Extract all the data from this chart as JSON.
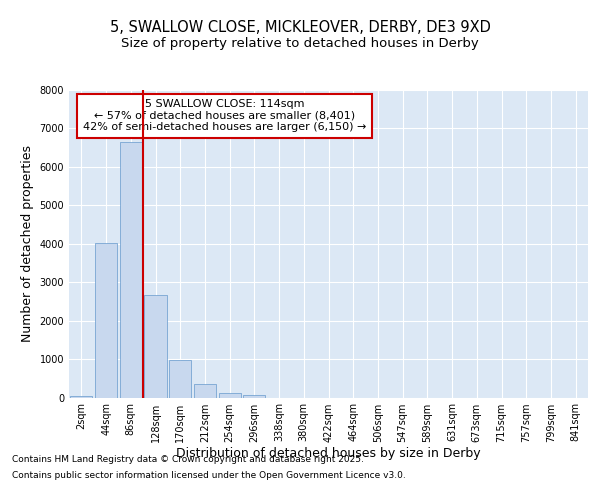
{
  "title_line1": "5, SWALLOW CLOSE, MICKLEOVER, DERBY, DE3 9XD",
  "title_line2": "Size of property relative to detached houses in Derby",
  "xlabel": "Distribution of detached houses by size in Derby",
  "ylabel": "Number of detached properties",
  "categories": [
    "2sqm",
    "44sqm",
    "86sqm",
    "128sqm",
    "170sqm",
    "212sqm",
    "254sqm",
    "296sqm",
    "338sqm",
    "380sqm",
    "422sqm",
    "464sqm",
    "506sqm",
    "547sqm",
    "589sqm",
    "631sqm",
    "673sqm",
    "715sqm",
    "757sqm",
    "799sqm",
    "841sqm"
  ],
  "values": [
    50,
    4030,
    6640,
    2660,
    970,
    340,
    110,
    60,
    0,
    0,
    0,
    0,
    0,
    0,
    0,
    0,
    0,
    0,
    0,
    0,
    0
  ],
  "bar_color": "#c8d8ee",
  "bar_edge_color": "#6699cc",
  "vline_x": 2.5,
  "vline_color": "#cc0000",
  "annotation_title": "5 SWALLOW CLOSE: 114sqm",
  "annotation_line2": "← 57% of detached houses are smaller (8,401)",
  "annotation_line3": "42% of semi-detached houses are larger (6,150) →",
  "annotation_box_color": "#cc0000",
  "ylim": [
    0,
    8000
  ],
  "yticks": [
    0,
    1000,
    2000,
    3000,
    4000,
    5000,
    6000,
    7000,
    8000
  ],
  "background_color": "#ffffff",
  "plot_bg_color": "#dce8f5",
  "footer_line1": "Contains HM Land Registry data © Crown copyright and database right 2025.",
  "footer_line2": "Contains public sector information licensed under the Open Government Licence v3.0.",
  "grid_color": "#ffffff",
  "title_fontsize": 10.5,
  "subtitle_fontsize": 9.5,
  "axis_label_fontsize": 9,
  "tick_fontsize": 7,
  "footer_fontsize": 6.5
}
